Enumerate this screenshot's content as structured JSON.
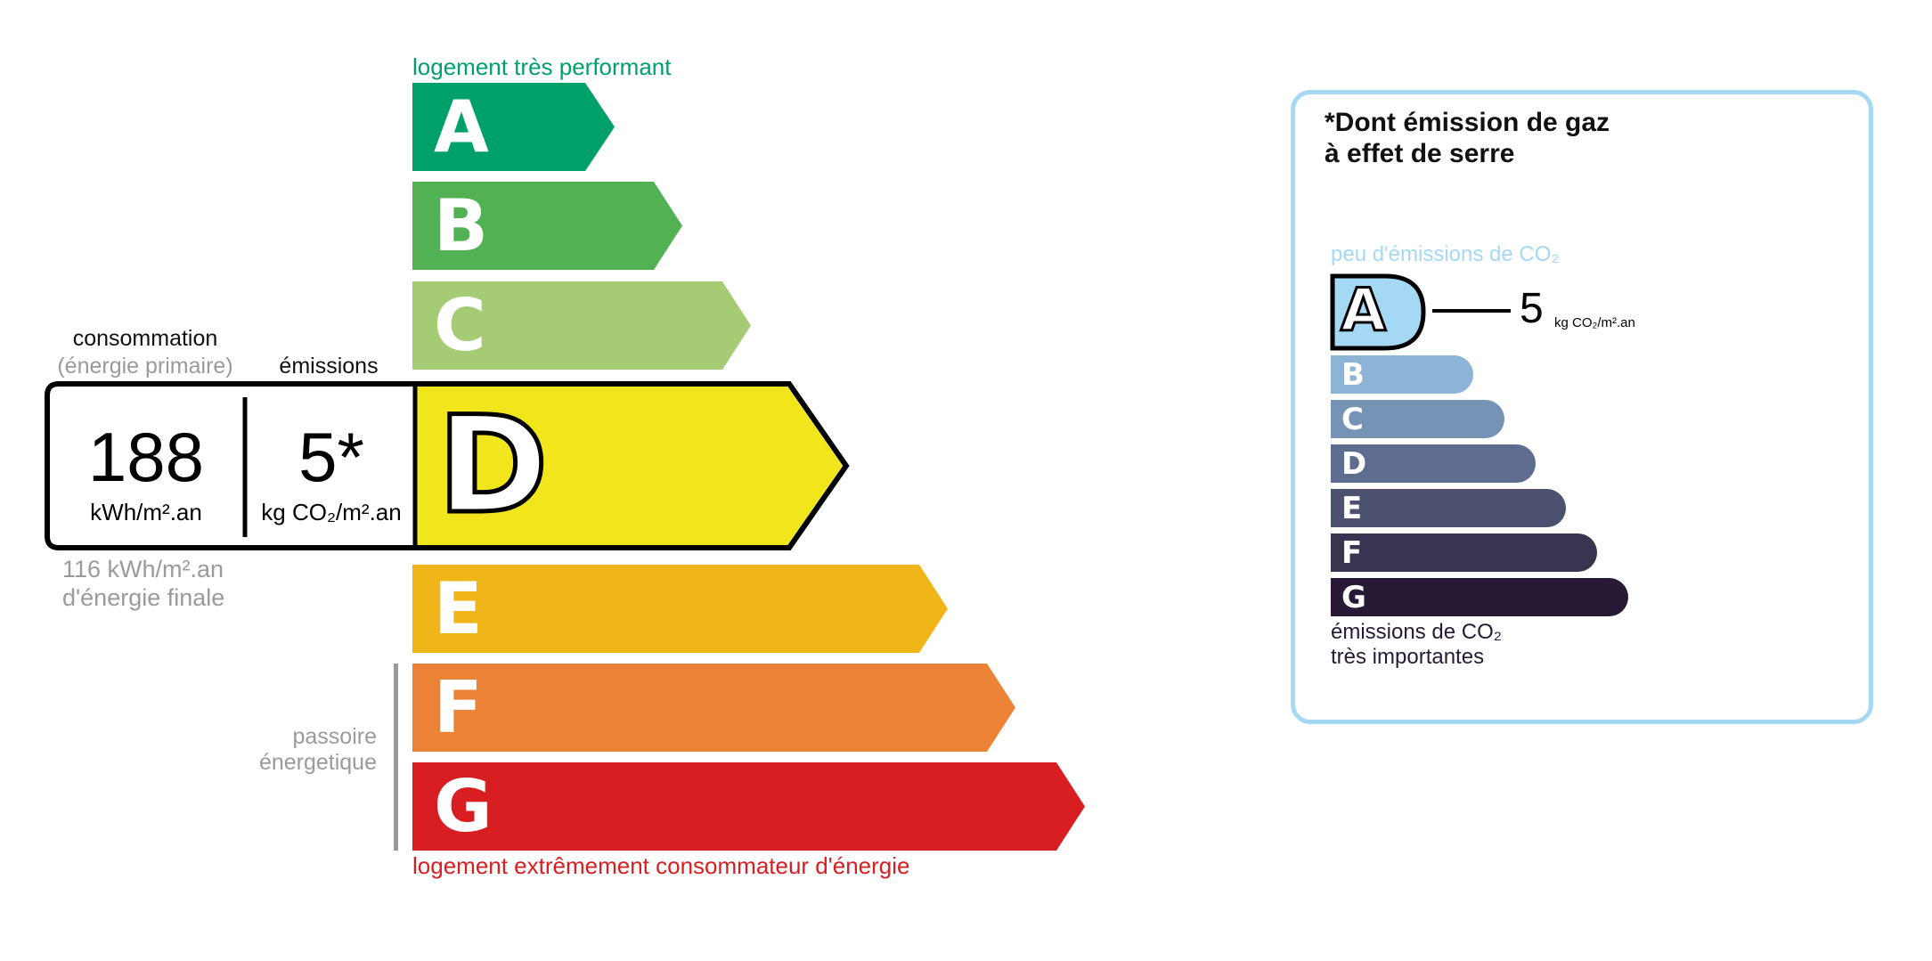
{
  "energy": {
    "top_label": "logement très performant",
    "bottom_label": "logement extrêmement consommateur d'énergie",
    "passoire": [
      "passoire",
      "énergetique"
    ],
    "classes": [
      {
        "letter": "A",
        "color": "#00a06b"
      },
      {
        "letter": "B",
        "color": "#52b153"
      },
      {
        "letter": "C",
        "color": "#a5cc74"
      },
      {
        "letter": "D",
        "color": "#f1e51b"
      },
      {
        "letter": "E",
        "color": "#f0b519"
      },
      {
        "letter": "F",
        "color": "#eb8235"
      },
      {
        "letter": "G",
        "color": "#d81e20"
      }
    ],
    "current_class": "D",
    "consumption_label": "consommation",
    "consumption_sub": "(énergie primaire)",
    "emissions_label": "émissions",
    "consumption_value": "188",
    "consumption_unit": "kWh/m².an",
    "emissions_value": "5*",
    "emissions_unit": "kg CO₂/m².an",
    "final_energy": "116 kWh/m².an",
    "final_energy_label": "d'énergie finale"
  },
  "ges": {
    "title_line1": "*Dont émission de gaz",
    "title_line2": "à effet de serre",
    "top_label": "peu d'émissions de CO₂",
    "bottom_line1": "émissions de CO₂",
    "bottom_line2": "très importantes",
    "current_class": "A",
    "value": "5",
    "unit": "kg CO₂/m².an",
    "border_color": "#a5d8f3",
    "classes": [
      {
        "letter": "A",
        "color": "#a5d8f3"
      },
      {
        "letter": "B",
        "color": "#8db3d6"
      },
      {
        "letter": "C",
        "color": "#7593b5"
      },
      {
        "letter": "D",
        "color": "#5e6d8f"
      },
      {
        "letter": "E",
        "color": "#4c516f"
      },
      {
        "letter": "F",
        "color": "#383551"
      },
      {
        "letter": "G",
        "color": "#281a36"
      }
    ]
  }
}
